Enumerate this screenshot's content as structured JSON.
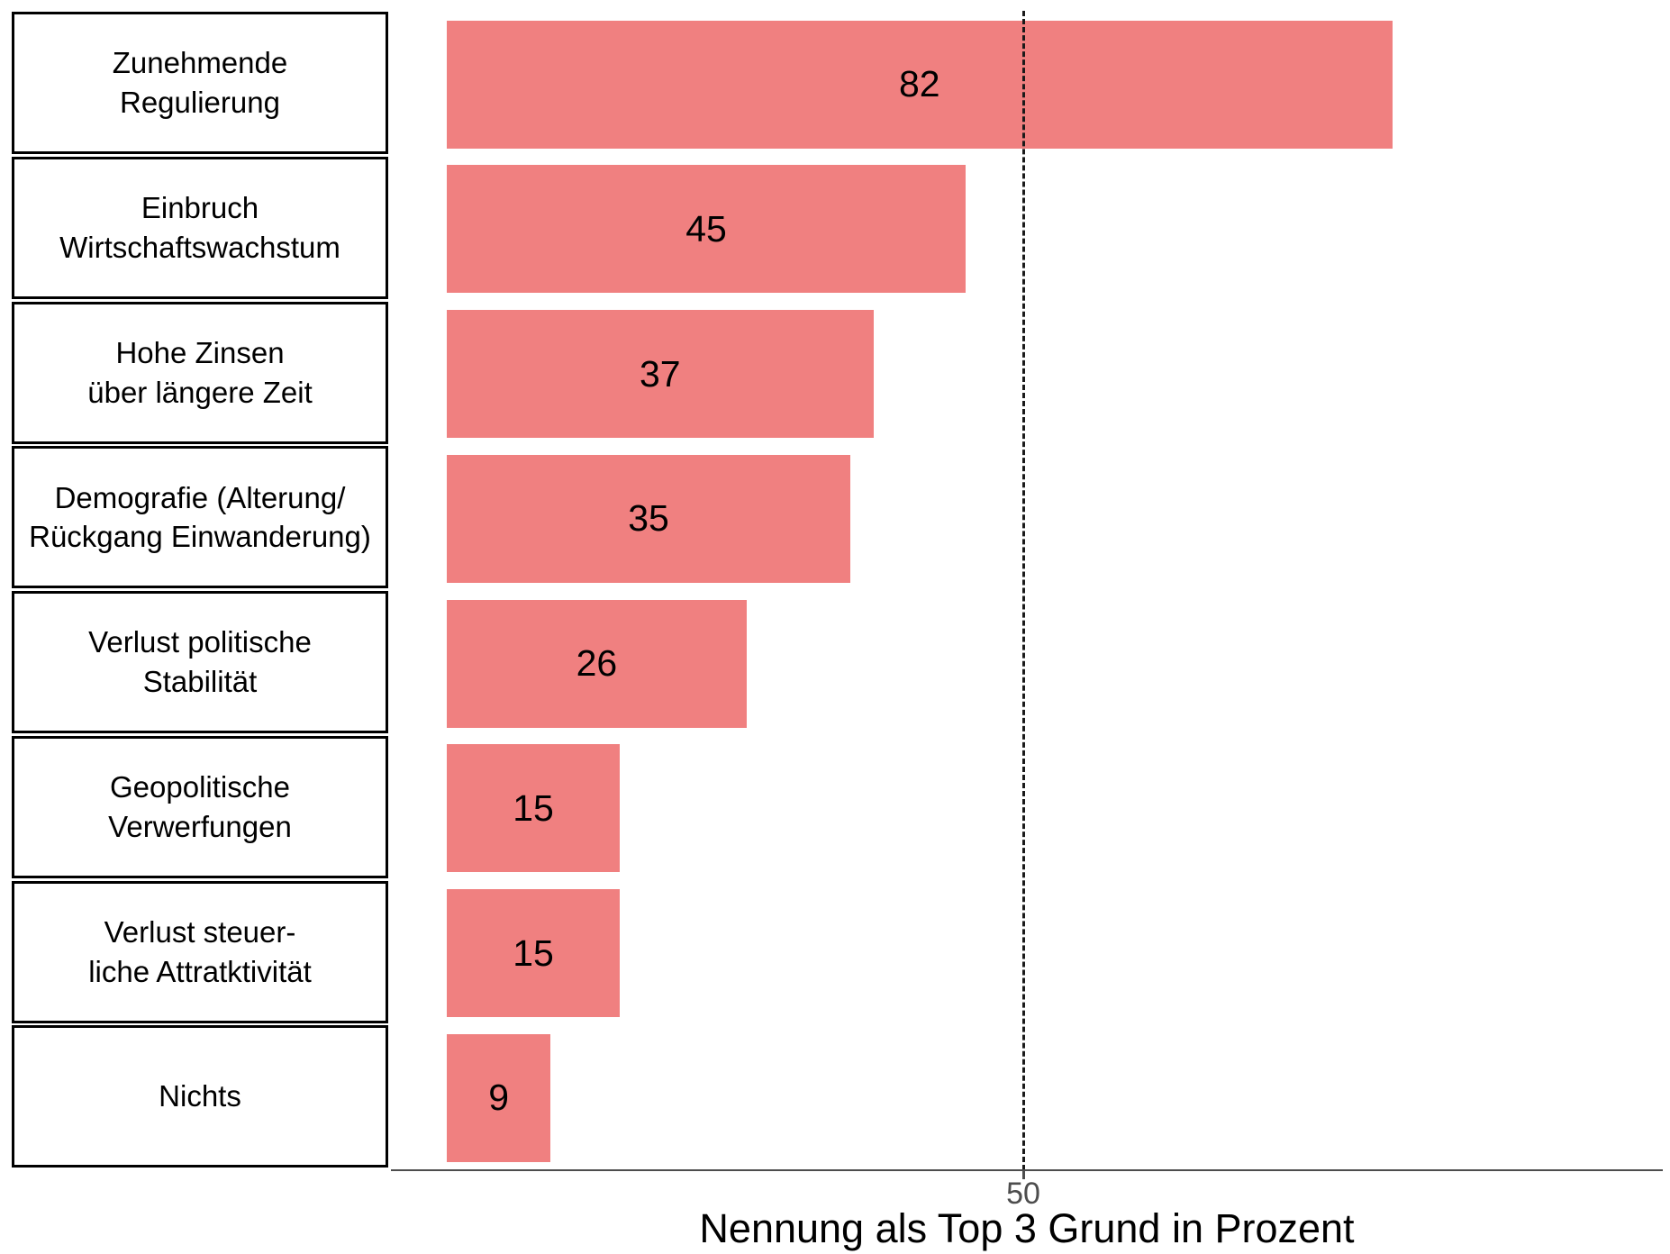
{
  "chart_data": {
    "type": "bar",
    "orientation": "horizontal",
    "categories": [
      "Zunehmende\nRegulierung",
      "Einbruch\nWirtschaftswachstum",
      "Hohe Zinsen\nüber längere Zeit",
      "Demografie (Alterung/\nRückgang Einwanderung)",
      "Verlust politische\nStabilität",
      "Geopolitische\nVerwerfungen",
      "Verlust steuer-\nliche Attratktivität",
      "Nichts"
    ],
    "values": [
      82,
      45,
      37,
      35,
      26,
      15,
      15,
      9
    ],
    "xlabel": "Nennung als Top 3 Grund in Prozent",
    "xticks": [
      50
    ],
    "xlim": [
      0,
      106
    ],
    "reference_line_x": 50,
    "grid": "off",
    "legend": "none",
    "colors": {
      "bar_fill": "#F08080",
      "value_label": "#000000",
      "category_label": "#000000",
      "category_box_border": "#000000",
      "reference_line": "#1a1a1a",
      "axis_line": "#4d4d4d",
      "tick_label": "#4d4d4d",
      "axis_title": "#000000",
      "background": "#ffffff"
    }
  }
}
